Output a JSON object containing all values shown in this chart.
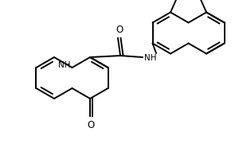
{
  "background": "#ffffff",
  "line_color": "#000000",
  "line_width": 1.4,
  "figsize": [
    3.0,
    2.0
  ],
  "dpi": 100,
  "xlim": [
    0,
    300
  ],
  "ylim": [
    0,
    200
  ]
}
